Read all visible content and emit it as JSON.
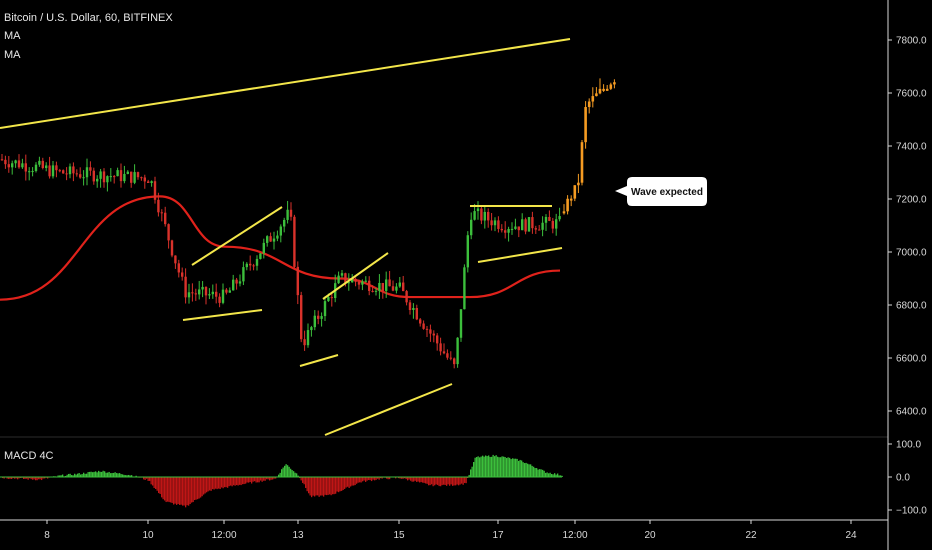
{
  "header": {
    "symbol_title": "Bitcoin / U.S. Dollar, 60, BITFINEX",
    "indicator_1": "MA",
    "indicator_2": "MA"
  },
  "macd_panel": {
    "label": "MACD 4C"
  },
  "annotation": {
    "text": "Wave expected"
  },
  "price_axis": {
    "ticks": [
      "7800.0",
      "7600.0",
      "7400.0",
      "7200.0",
      "7000.0",
      "6800.0",
      "6600.0",
      "6400.0"
    ]
  },
  "macd_axis": {
    "ticks": [
      "100.0",
      "0.0",
      "−100.0"
    ]
  },
  "time_axis": {
    "ticks": [
      "8",
      "10",
      "12:00",
      "13",
      "15",
      "17",
      "12:00",
      "20",
      "22",
      "24"
    ]
  },
  "colors": {
    "background": "#000000",
    "candle_up": "#3cbf3c",
    "candle_down": "#d9322b",
    "projection": "#f59b22",
    "trendline": "#f3e64a",
    "moving_average": "#e0221b",
    "macd_up": "#3cbf3c",
    "macd_down": "#c01616"
  },
  "chart_data": {
    "type": "candlestick",
    "symbol": "BTCUSD",
    "timeframe": "60",
    "exchange": "BITFINEX",
    "ylim": [
      6300,
      7850
    ],
    "close_path": [
      {
        "x": "8",
        "y": 7350
      },
      {
        "x": "9",
        "y": 7300
      },
      {
        "x": "10",
        "y": 7280
      },
      {
        "x": "10.5",
        "y": 6850
      },
      {
        "x": "12:00",
        "y": 6830
      },
      {
        "x": "12.9",
        "y": 7150
      },
      {
        "x": "13",
        "y": 6650
      },
      {
        "x": "14",
        "y": 6900
      },
      {
        "x": "15",
        "y": 6860
      },
      {
        "x": "16",
        "y": 6560
      },
      {
        "x": "16.3",
        "y": 7150
      },
      {
        "x": "17",
        "y": 7100
      },
      {
        "x": "18.2",
        "y": 7110
      }
    ],
    "projection_path": [
      {
        "x": "18.2",
        "y": 7150
      },
      {
        "x": "18.6",
        "y": 7250
      },
      {
        "x": "18.8",
        "y": 7550
      },
      {
        "x": "19.2",
        "y": 7650
      }
    ],
    "moving_average": [
      {
        "x": "7.5",
        "y": 6820
      },
      {
        "x": "10",
        "y": 7210
      },
      {
        "x": "12:00",
        "y": 7020
      },
      {
        "x": "15",
        "y": 6900
      },
      {
        "x": "16",
        "y": 6830
      },
      {
        "x": "17",
        "y": 6830
      },
      {
        "x": "18.2",
        "y": 6930
      }
    ],
    "macd_histogram_range": [
      -100,
      100
    ]
  }
}
